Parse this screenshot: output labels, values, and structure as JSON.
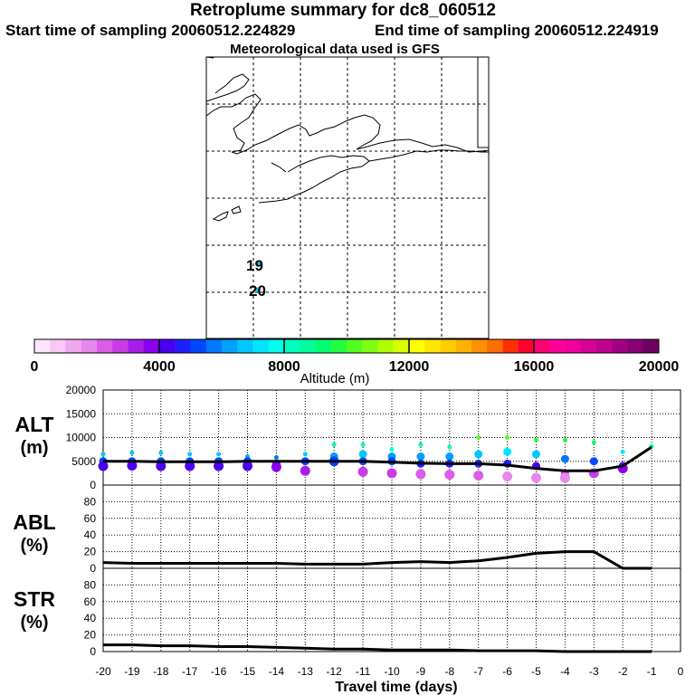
{
  "header": {
    "title": "Retroplume summary for dc8_060512",
    "start_label": "Start time of sampling 20060512.224829",
    "end_label": "End time of sampling 20060512.224919",
    "met_label": "Meteorological data used is GFS"
  },
  "map": {
    "day_labels": [
      "19",
      "20"
    ]
  },
  "colorbar": {
    "tick_labels": [
      "0",
      "4000",
      "8000",
      "12000",
      "16000",
      "20000"
    ],
    "label": "Altitude (m)",
    "colors": [
      "#fde6fd",
      "#f8c8f8",
      "#f0a8f0",
      "#e888ec",
      "#dc5ce8",
      "#c83ce8",
      "#a81ee8",
      "#8a00ee",
      "#4a00f0",
      "#2020ff",
      "#0048ff",
      "#0078ff",
      "#00a0ff",
      "#00c8ff",
      "#00e4ff",
      "#00ffee",
      "#00ffc0",
      "#00ff9a",
      "#00ff70",
      "#20ff40",
      "#50ff20",
      "#80ff10",
      "#b0ff00",
      "#d8ff00",
      "#ffff00",
      "#ffe600",
      "#ffcc00",
      "#ffb000",
      "#ff9000",
      "#ff6e00",
      "#ff3000",
      "#ff0030",
      "#ff0070",
      "#ff0098",
      "#f000a0",
      "#d8009a",
      "#c00090",
      "#a40086",
      "#880074",
      "#6e0060"
    ]
  },
  "chart_data": [
    {
      "type": "scatter",
      "name": "ALT",
      "ylabel": "ALT\n(m)",
      "ylabel_lines": [
        "ALT",
        "(m)"
      ],
      "ylim": [
        0,
        20000
      ],
      "yticks": [
        "0",
        "5000",
        "10000",
        "15000",
        "20000"
      ],
      "x": [
        -20,
        -19,
        -18,
        -17,
        -16,
        -15,
        -14,
        -13,
        -12,
        -11,
        -10,
        -9,
        -8,
        -7,
        -6,
        -5,
        -4,
        -3,
        -2,
        -1
      ],
      "median_line": [
        5000,
        5000,
        4900,
        4900,
        4900,
        5000,
        5000,
        5000,
        5000,
        5000,
        4800,
        4600,
        4500,
        4500,
        4200,
        3500,
        3000,
        3000,
        4000,
        8000
      ],
      "scatter_altitudes": [
        [
          6500,
          5000,
          4000
        ],
        [
          6800,
          5000,
          4100
        ],
        [
          6800,
          5000,
          4000
        ],
        [
          6500,
          5000,
          4000
        ],
        [
          6500,
          5000,
          4000
        ],
        [
          6000,
          5000,
          4000
        ],
        [
          5800,
          4500,
          3800
        ],
        [
          6500,
          5000,
          3000
        ],
        [
          8500,
          6000,
          5000
        ],
        [
          8500,
          6500,
          5000,
          2800
        ],
        [
          7500,
          6000,
          5000,
          2500
        ],
        [
          8500,
          6000,
          4500,
          2300
        ],
        [
          8000,
          6000,
          4500,
          2200
        ],
        [
          10000,
          6500,
          4500,
          2000
        ],
        [
          10000,
          7000,
          4500,
          1800
        ],
        [
          9500,
          6500,
          4000,
          1500
        ],
        [
          9500,
          5500,
          2500,
          1500
        ],
        [
          9000,
          5000,
          2500
        ],
        [
          7000,
          4000,
          3500
        ],
        [
          8200
        ]
      ]
    },
    {
      "type": "line",
      "name": "ABL",
      "ylabel_lines": [
        "ABL",
        "(%)"
      ],
      "ylim": [
        0,
        100
      ],
      "yticks": [
        "0",
        "20",
        "40",
        "60",
        "80"
      ],
      "x": [
        -20,
        -19,
        -18,
        -17,
        -16,
        -15,
        -14,
        -13,
        -12,
        -11,
        -10,
        -9,
        -8,
        -7,
        -6,
        -5,
        -4,
        -3,
        -2,
        -1
      ],
      "values": [
        7,
        6,
        6,
        6,
        6,
        6,
        6,
        5,
        5,
        5,
        7,
        8,
        7,
        9,
        13,
        18,
        20,
        20,
        0,
        0
      ]
    },
    {
      "type": "line",
      "name": "STR",
      "ylabel_lines": [
        "STR",
        "(%)"
      ],
      "ylim": [
        0,
        100
      ],
      "yticks": [
        "0",
        "20",
        "40",
        "60",
        "80"
      ],
      "x": [
        -20,
        -19,
        -18,
        -17,
        -16,
        -15,
        -14,
        -13,
        -12,
        -11,
        -10,
        -9,
        -8,
        -7,
        -6,
        -5,
        -4,
        -3,
        -2,
        -1
      ],
      "values": [
        8,
        8,
        7,
        7,
        6,
        6,
        5,
        4,
        3,
        3,
        2,
        2,
        2,
        1,
        1,
        1,
        0,
        0,
        0,
        0
      ],
      "xlabel": "Travel time (days)",
      "xticks": [
        "-20",
        "-19",
        "-18",
        "-17",
        "-16",
        "-15",
        "-14",
        "-13",
        "-12",
        "-11",
        "-10",
        "-9",
        "-8",
        "-7",
        "-6",
        "-5",
        "-4",
        "-3",
        "-2",
        "-1",
        "0"
      ]
    }
  ]
}
